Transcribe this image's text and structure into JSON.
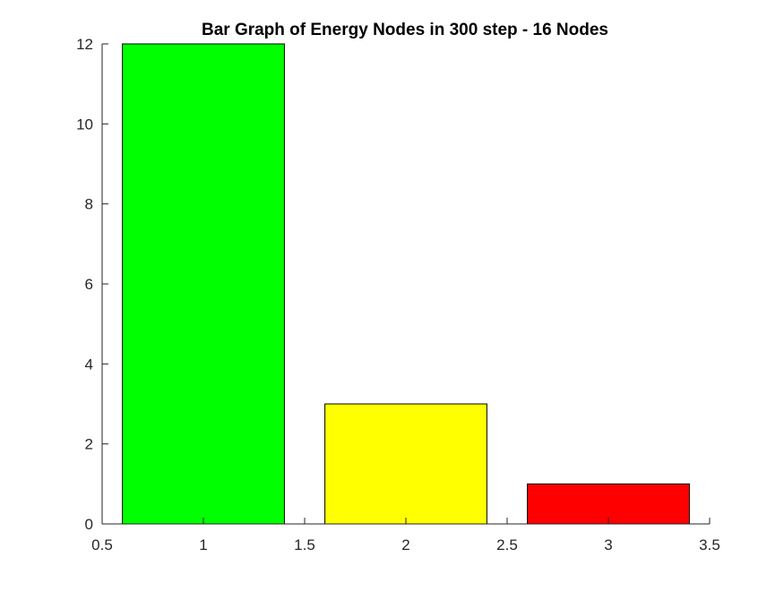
{
  "chart_data": {
    "type": "bar",
    "title": "Bar Graph of Energy Nodes in 300 step - 16 Nodes",
    "xlabel": "",
    "ylabel": "",
    "x": [
      1,
      2,
      3
    ],
    "values": [
      12,
      3,
      1
    ],
    "bar_colors": [
      "#00ff00",
      "#ffff00",
      "#ff0000"
    ],
    "bar_width": 0.8,
    "xlim": [
      0.5,
      3.5
    ],
    "ylim": [
      0,
      12
    ],
    "xticks": [
      "0.5",
      "1",
      "1.5",
      "2",
      "2.5",
      "3",
      "3.5"
    ],
    "yticks": [
      "0",
      "2",
      "4",
      "6",
      "8",
      "10",
      "12"
    ],
    "grid": false,
    "legend": "none"
  }
}
